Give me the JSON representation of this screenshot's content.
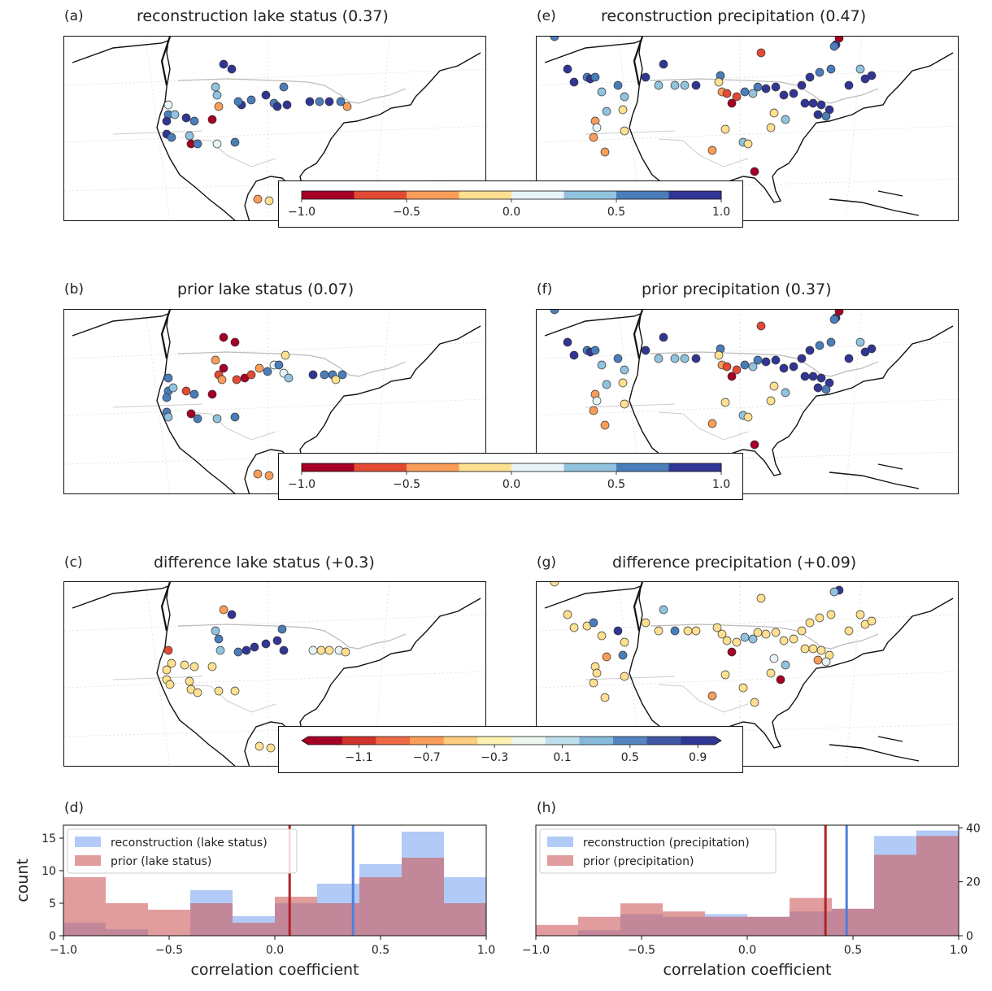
{
  "panels": {
    "a": {
      "label": "(a)",
      "title": "reconstruction lake status (0.37)"
    },
    "e": {
      "label": "(e)",
      "title": "reconstruction precipitation (0.47)"
    },
    "b": {
      "label": "(b)",
      "title": "prior lake status (0.07)"
    },
    "f": {
      "label": "(f)",
      "title": "prior precipitation (0.37)"
    },
    "c": {
      "label": "(c)",
      "title": "difference lake status (+0.3)"
    },
    "g": {
      "label": "(g)",
      "title": "difference precipitation (+0.09)"
    },
    "d": {
      "label": "(d)"
    },
    "h": {
      "label": "(h)"
    }
  },
  "colorbars": {
    "correlation": {
      "ticks": [
        "−1.0",
        "−0.5",
        "0.0",
        "0.5",
        "1.0"
      ],
      "colors": [
        "#a50026",
        "#e34a33",
        "#f99d59",
        "#fee090",
        "#e8f4f8",
        "#91c3de",
        "#4a7db9",
        "#313695"
      ]
    },
    "difference": {
      "ticks": [
        "−1.1",
        "−0.7",
        "−0.3",
        "0.1",
        "0.5",
        "0.9"
      ],
      "colors": [
        "#a50026",
        "#d0322d",
        "#ee6944",
        "#f99d59",
        "#fdcc7e",
        "#fef2b3",
        "#ecf7f1",
        "#c0dfed",
        "#87bad9",
        "#5584bf",
        "#3f57a4",
        "#313695"
      ]
    }
  },
  "chart_data": [
    {
      "type": "bar",
      "panel": "d",
      "xlabel": "correlation coefficient",
      "ylabel": "count",
      "xlim": [
        -1.0,
        1.0
      ],
      "ylim": [
        0,
        17
      ],
      "x_ticks": [
        "−1.0",
        "−0.5",
        "0.0",
        "0.5",
        "1.0"
      ],
      "y_ticks": [
        "0",
        "5",
        "10",
        "15"
      ],
      "bin_edges": [
        -1.0,
        -0.8,
        -0.6,
        -0.4,
        -0.2,
        0.0,
        0.2,
        0.4,
        0.6,
        0.8,
        1.0
      ],
      "series": [
        {
          "name": "reconstruction (lake status)",
          "color": "#6495ed",
          "values": [
            2,
            1,
            0,
            7,
            3,
            5,
            8,
            11,
            16,
            9
          ],
          "mean": 0.37
        },
        {
          "name": "prior (lake status)",
          "color": "#cd5c5c",
          "values": [
            9,
            5,
            4,
            5,
            2,
            6,
            5,
            9,
            12,
            5
          ],
          "mean": 0.07
        }
      ],
      "legend": "upper-left"
    },
    {
      "type": "bar",
      "panel": "h",
      "xlabel": "correlation coefficient",
      "xlim": [
        -1.0,
        1.0
      ],
      "ylim": [
        0,
        41
      ],
      "x_ticks": [
        "−1.0",
        "−0.5",
        "0.0",
        "0.5",
        "1.0"
      ],
      "y_ticks": [
        "0",
        "20",
        "40"
      ],
      "y_axis_side": "right",
      "bin_edges": [
        -1.0,
        -0.8,
        -0.6,
        -0.4,
        -0.2,
        0.0,
        0.2,
        0.4,
        0.6,
        0.8,
        1.0
      ],
      "series": [
        {
          "name": "reconstruction (precipitation)",
          "color": "#6495ed",
          "values": [
            0,
            2,
            8,
            7,
            8,
            7,
            9,
            10,
            37,
            39
          ],
          "mean": 0.47
        },
        {
          "name": "prior (precipitation)",
          "color": "#cd5c5c",
          "values": [
            4,
            7,
            12,
            9,
            7,
            7,
            14,
            10,
            30,
            37
          ],
          "mean": 0.37
        }
      ],
      "legend": "upper-left"
    }
  ]
}
